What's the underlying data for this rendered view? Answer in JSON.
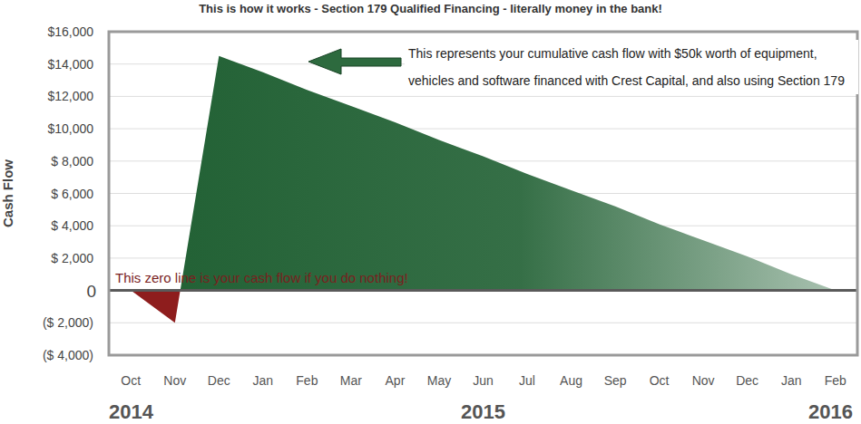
{
  "chart_data": {
    "type": "area",
    "title": "This is how it works - Section 179 Qualified Financing - literally money in the bank!",
    "y_label": "Cash Flow",
    "categories": [
      "Oct",
      "Nov",
      "Dec",
      "Jan",
      "Feb",
      "Mar",
      "Apr",
      "May",
      "Jun",
      "Jul",
      "Aug",
      "Sep",
      "Oct",
      "Nov",
      "Dec",
      "Jan",
      "Feb"
    ],
    "year_labels": [
      "2014",
      "2015",
      "2016"
    ],
    "values": [
      0,
      -2000,
      14500,
      13500,
      12400,
      11400,
      10400,
      9300,
      8300,
      7200,
      6200,
      5200,
      4100,
      3100,
      2100,
      1000,
      0
    ],
    "color": "#1f5f32",
    "ylim": [
      -4000,
      16000
    ],
    "yticks": [
      {
        "value": -4000,
        "label": "($ 4,000)"
      },
      {
        "value": -2000,
        "label": "($ 2,000)"
      },
      0,
      {
        "value": 2000,
        "label": "$ 2,000"
      },
      {
        "value": 4000,
        "label": "$ 4,000"
      },
      {
        "value": 6000,
        "label": "$ 6,000"
      },
      {
        "value": 8000,
        "label": "$ 8,000"
      },
      {
        "value": 10000,
        "label": "$10,000"
      },
      {
        "value": 12000,
        "label": "$12,000"
      },
      {
        "value": 14000,
        "label": "$14,000"
      },
      {
        "value": 16000,
        "label": "$16,000"
      }
    ],
    "grid": true,
    "annotations": [
      {
        "text": "This represents your cumulative cash flow with $50k worth of equipment, vehicles and software financed with Crest Capital, and also using Section 179"
      },
      {
        "text": "This zero line is your cash flow if you do nothing!"
      }
    ]
  }
}
